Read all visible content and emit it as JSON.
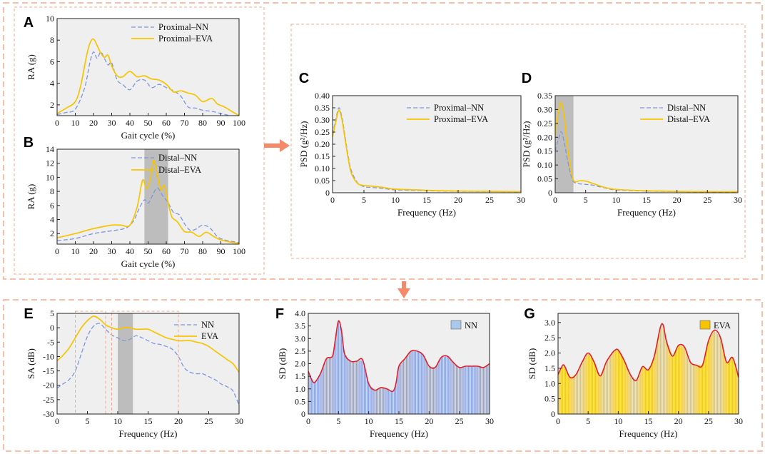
{
  "colors": {
    "frame": "#f6a98c",
    "arrow": "#f48a6a",
    "nn": "#7d97e0",
    "eva": "#f7c400",
    "bg": "#efefef",
    "shade": "#bdbdbd",
    "sd_line": "#e0202c"
  },
  "chart_data": [
    {
      "id": "A",
      "panel_label": "A",
      "type": "line",
      "xlabel": "Gait cycle (%)",
      "ylabel": "RA (g)",
      "xlim": [
        0,
        100
      ],
      "ylim": [
        1,
        10
      ],
      "xticks": [
        0,
        10,
        20,
        30,
        40,
        50,
        60,
        70,
        80,
        90,
        100
      ],
      "yticks": [
        2,
        4,
        6,
        8,
        10
      ],
      "legend_position": "top-right",
      "series": [
        {
          "name": "Proximal–NN",
          "style": "dashed",
          "color": "#7d97e0",
          "x": [
            0,
            5,
            10,
            15,
            18,
            20,
            22,
            24,
            26,
            28,
            30,
            33,
            36,
            40,
            44,
            48,
            52,
            56,
            60,
            64,
            68,
            72,
            76,
            80,
            85,
            90,
            95,
            100
          ],
          "y": [
            1.1,
            1.3,
            1.6,
            3.5,
            5.9,
            6.9,
            6.3,
            6.9,
            6.3,
            5.7,
            5.9,
            4.3,
            3.9,
            3.4,
            4.2,
            4.3,
            3.6,
            3.9,
            3.6,
            3.3,
            2.8,
            1.8,
            1.7,
            1.5,
            1.4,
            1.2,
            1.0,
            0.8
          ]
        },
        {
          "name": "Proximal–EVA",
          "style": "solid",
          "color": "#f7c400",
          "x": [
            0,
            5,
            10,
            13,
            16,
            18,
            20,
            22,
            24,
            26,
            28,
            30,
            33,
            36,
            40,
            44,
            48,
            52,
            56,
            60,
            64,
            68,
            72,
            76,
            80,
            85,
            88,
            92,
            96,
            100
          ],
          "y": [
            1.2,
            1.7,
            2.3,
            3.8,
            6.4,
            7.7,
            8.1,
            7.5,
            6.8,
            6.4,
            6.6,
            5.6,
            4.7,
            4.6,
            5.1,
            4.6,
            4.7,
            4.4,
            4.3,
            3.9,
            3.2,
            3.3,
            3.1,
            2.9,
            2.3,
            2.6,
            2.1,
            1.8,
            1.4,
            1.0
          ]
        }
      ]
    },
    {
      "id": "B",
      "panel_label": "B",
      "type": "line",
      "xlabel": "Gait cycle (%)",
      "ylabel": "RA (g)",
      "xlim": [
        0,
        100
      ],
      "ylim": [
        0.5,
        14
      ],
      "xticks": [
        0,
        10,
        20,
        30,
        40,
        50,
        60,
        70,
        80,
        90,
        100
      ],
      "yticks": [
        2,
        4,
        6,
        8,
        10,
        12,
        14
      ],
      "shaded_x": [
        48,
        61
      ],
      "legend_position": "top-right",
      "series": [
        {
          "name": "Distal–NN",
          "style": "dashed",
          "color": "#7d97e0",
          "x": [
            0,
            10,
            20,
            30,
            38,
            42,
            45,
            48,
            50,
            52,
            55,
            58,
            61,
            64,
            67,
            70,
            73,
            76,
            80,
            84,
            88,
            92,
            96,
            100
          ],
          "y": [
            1.0,
            1.3,
            2.0,
            2.4,
            2.8,
            3.8,
            5.5,
            6.8,
            6.3,
            7.2,
            8.5,
            7.4,
            6.4,
            5.0,
            4.7,
            3.4,
            2.5,
            2.6,
            3.2,
            2.8,
            1.6,
            1.1,
            0.9,
            0.7
          ]
        },
        {
          "name": "Distal–EVA",
          "style": "solid",
          "color": "#f7c400",
          "x": [
            0,
            10,
            20,
            30,
            35,
            40,
            44,
            47,
            49,
            51,
            53,
            55,
            57,
            59,
            61,
            63,
            66,
            70,
            74,
            78,
            82,
            86,
            90,
            95,
            100
          ],
          "y": [
            1.4,
            2.0,
            2.7,
            3.2,
            3.2,
            3.2,
            5.8,
            9.6,
            8.4,
            9.5,
            12.4,
            10.5,
            8.2,
            8.8,
            6.5,
            4.4,
            3.7,
            2.3,
            2.2,
            1.6,
            2.2,
            1.6,
            1.1,
            0.8,
            0.6
          ]
        }
      ]
    },
    {
      "id": "C",
      "panel_label": "C",
      "type": "line",
      "xlabel": "Frequency (Hz)",
      "ylabel": "PSD (g²/Hz)",
      "xlim": [
        0,
        30
      ],
      "ylim": [
        0,
        0.4
      ],
      "xticks": [
        0,
        5,
        10,
        15,
        20,
        25,
        30
      ],
      "yticks": [
        0,
        0.05,
        0.1,
        0.15,
        0.2,
        0.25,
        0.3,
        0.35,
        0.4
      ],
      "ytick_labels": [
        "0",
        "0.05",
        "0.10",
        "0.15",
        "0.20",
        "0.25",
        "0.30",
        "0.35",
        "0.40"
      ],
      "legend_position": "top-right",
      "series": [
        {
          "name": "Proximal–NN",
          "style": "dashed",
          "color": "#7d97e0",
          "x": [
            0,
            0.5,
            1,
            1.5,
            2,
            2.5,
            3,
            4,
            5,
            6,
            8,
            10,
            15,
            20,
            25,
            30
          ],
          "y": [
            0.24,
            0.3,
            0.35,
            0.31,
            0.23,
            0.15,
            0.09,
            0.04,
            0.025,
            0.022,
            0.018,
            0.012,
            0.008,
            0.006,
            0.005,
            0.004
          ]
        },
        {
          "name": "Proximal–EVA",
          "style": "solid",
          "color": "#f7c400",
          "x": [
            0,
            0.5,
            1,
            1.5,
            2,
            2.5,
            3,
            4,
            5,
            6,
            8,
            10,
            15,
            20,
            25,
            30
          ],
          "y": [
            0.23,
            0.29,
            0.34,
            0.3,
            0.22,
            0.14,
            0.08,
            0.038,
            0.03,
            0.028,
            0.022,
            0.015,
            0.01,
            0.007,
            0.006,
            0.005
          ]
        }
      ]
    },
    {
      "id": "D",
      "panel_label": "D",
      "type": "line",
      "xlabel": "Frequency (Hz)",
      "ylabel": "PSD (g²/Hz)",
      "xlim": [
        0,
        30
      ],
      "ylim": [
        0,
        0.35
      ],
      "xticks": [
        0,
        5,
        10,
        15,
        20,
        25,
        30
      ],
      "yticks": [
        0,
        0.05,
        0.1,
        0.15,
        0.2,
        0.25,
        0.3,
        0.35
      ],
      "ytick_labels": [
        "0",
        "0.05",
        "0.10",
        "0.15",
        "0.20",
        "0.25",
        "0.30",
        "0.35"
      ],
      "shaded_x": [
        0,
        3
      ],
      "legend_position": "top-right",
      "series": [
        {
          "name": "Distal–NN",
          "style": "dashed",
          "color": "#7d97e0",
          "x": [
            0,
            0.5,
            1,
            1.5,
            2,
            2.5,
            3,
            3.5,
            4,
            5,
            6,
            8,
            10,
            15,
            20,
            25,
            30
          ],
          "y": [
            0.15,
            0.19,
            0.22,
            0.18,
            0.12,
            0.07,
            0.04,
            0.035,
            0.032,
            0.03,
            0.028,
            0.018,
            0.01,
            0.006,
            0.004,
            0.003,
            0.003
          ]
        },
        {
          "name": "Distal–EVA",
          "style": "solid",
          "color": "#f7c400",
          "x": [
            0,
            0.5,
            1,
            1.5,
            2,
            2.5,
            3,
            3.5,
            4,
            5,
            6,
            8,
            10,
            15,
            20,
            25,
            30
          ],
          "y": [
            0.21,
            0.29,
            0.325,
            0.27,
            0.17,
            0.09,
            0.045,
            0.04,
            0.043,
            0.042,
            0.035,
            0.02,
            0.012,
            0.007,
            0.005,
            0.004,
            0.004
          ]
        }
      ]
    },
    {
      "id": "E",
      "panel_label": "E",
      "type": "line",
      "xlabel": "Frequency (Hz)",
      "ylabel": "SA (dB)",
      "xlim": [
        0,
        30
      ],
      "ylim": [
        -30,
        5
      ],
      "xticks": [
        0,
        5,
        10,
        15,
        20,
        25,
        30
      ],
      "yticks": [
        -30,
        -25,
        -20,
        -15,
        -10,
        -5,
        0,
        5
      ],
      "shaded_x": [
        10,
        12.5
      ],
      "boxes_x": [
        [
          3,
          8
        ],
        [
          9,
          20
        ]
      ],
      "legend_position": "top-right",
      "series": [
        {
          "name": "NN",
          "style": "dashed",
          "color": "#7d97e0",
          "x": [
            0,
            1,
            2,
            3,
            4,
            5,
            6,
            7,
            8,
            9,
            10,
            11,
            12,
            13,
            14,
            15,
            16,
            17,
            18,
            19,
            20,
            21,
            22,
            23,
            24,
            25,
            26,
            27,
            28,
            29,
            30
          ],
          "y": [
            -21,
            -19.5,
            -18,
            -15,
            -9,
            -3,
            0.5,
            1.5,
            -0.5,
            -2.5,
            -3.5,
            -4.5,
            -4,
            -2.8,
            -3.5,
            -4.5,
            -5.5,
            -5.8,
            -6.5,
            -7.5,
            -10,
            -14,
            -15.5,
            -16,
            -16,
            -17,
            -18,
            -19.5,
            -20.5,
            -22,
            -27
          ]
        },
        {
          "name": "EVA",
          "style": "solid",
          "color": "#f7c400",
          "x": [
            0,
            1,
            2,
            3,
            4,
            5,
            6,
            7,
            8,
            9,
            10,
            11,
            12,
            13,
            14,
            15,
            16,
            17,
            18,
            19,
            20,
            21,
            22,
            23,
            24,
            25,
            26,
            27,
            28,
            29,
            30
          ],
          "y": [
            -11.5,
            -9.5,
            -7,
            -3.5,
            0,
            2.5,
            4,
            3,
            1,
            0,
            -0.5,
            0,
            0,
            -0.5,
            -0.5,
            -0.5,
            -1.5,
            -2.5,
            -3.5,
            -4,
            -4.5,
            -4.5,
            -4.5,
            -5,
            -5.5,
            -6.5,
            -8,
            -9.5,
            -11,
            -12.5,
            -15.5
          ]
        }
      ]
    },
    {
      "id": "F",
      "panel_label": "F",
      "type": "area",
      "xlabel": "Frequency (Hz)",
      "ylabel": "SD (dB)",
      "xlim": [
        0,
        30
      ],
      "ylim": [
        0,
        4.0
      ],
      "xticks": [
        0,
        5,
        10,
        15,
        20,
        25,
        30
      ],
      "yticks": [
        0,
        0.5,
        1.0,
        1.5,
        2.0,
        2.5,
        3.0,
        3.5,
        4.0
      ],
      "ytick_labels": [
        "0",
        "0.5",
        "1.0",
        "1.5",
        "2.0",
        "2.5",
        "3.0",
        "3.5",
        "4.0"
      ],
      "legend_position": "top-right",
      "series": [
        {
          "name": "NN",
          "color": "#7d97e0",
          "x": [
            0,
            0.5,
            1,
            2,
            3,
            4,
            4.5,
            5,
            5.5,
            6,
            7,
            8,
            9,
            10,
            11,
            12,
            13,
            14,
            14.5,
            15,
            16,
            17,
            18,
            19,
            20,
            21,
            22,
            23,
            24,
            25,
            26,
            27,
            28,
            29,
            30
          ],
          "y": [
            1.7,
            1.4,
            1.25,
            1.6,
            2.2,
            2.3,
            3.0,
            3.7,
            3.3,
            2.4,
            2.1,
            2.1,
            2.15,
            1.2,
            0.95,
            1.05,
            1.0,
            0.9,
            1.2,
            1.9,
            2.2,
            2.5,
            2.5,
            2.35,
            1.9,
            1.85,
            2.25,
            2.3,
            2.05,
            1.85,
            1.9,
            1.9,
            1.9,
            1.85,
            2.0
          ]
        }
      ]
    },
    {
      "id": "G",
      "panel_label": "G",
      "type": "area",
      "xlabel": "Frequency (Hz)",
      "ylabel": "SD (dB)",
      "xlim": [
        0,
        30
      ],
      "ylim": [
        0,
        3.3
      ],
      "xticks": [
        0,
        5,
        10,
        15,
        20,
        25,
        30
      ],
      "yticks": [
        0,
        0.5,
        1.0,
        1.5,
        2.0,
        2.5,
        3.0
      ],
      "ytick_labels": [
        "0",
        "0.5",
        "1.0",
        "1.5",
        "2.0",
        "2.5",
        "3.0"
      ],
      "legend_position": "top-right",
      "series": [
        {
          "name": "EVA",
          "color": "#f7c400",
          "x": [
            0,
            0.5,
            1,
            2,
            3,
            4,
            5,
            6,
            7,
            8,
            9,
            9.5,
            10,
            11,
            12,
            13,
            14,
            15,
            16,
            17,
            17.5,
            18,
            19,
            20,
            21,
            22,
            23,
            24,
            25,
            26,
            27,
            28,
            29,
            30
          ],
          "y": [
            1.3,
            1.5,
            1.6,
            1.2,
            1.3,
            1.7,
            2.0,
            1.7,
            1.25,
            1.7,
            2.0,
            2.1,
            2.1,
            1.75,
            1.3,
            1.1,
            1.55,
            1.45,
            1.9,
            2.85,
            2.9,
            2.4,
            1.9,
            2.25,
            2.2,
            1.7,
            1.6,
            1.6,
            2.4,
            2.75,
            2.5,
            1.7,
            1.85,
            1.2
          ]
        }
      ]
    }
  ]
}
